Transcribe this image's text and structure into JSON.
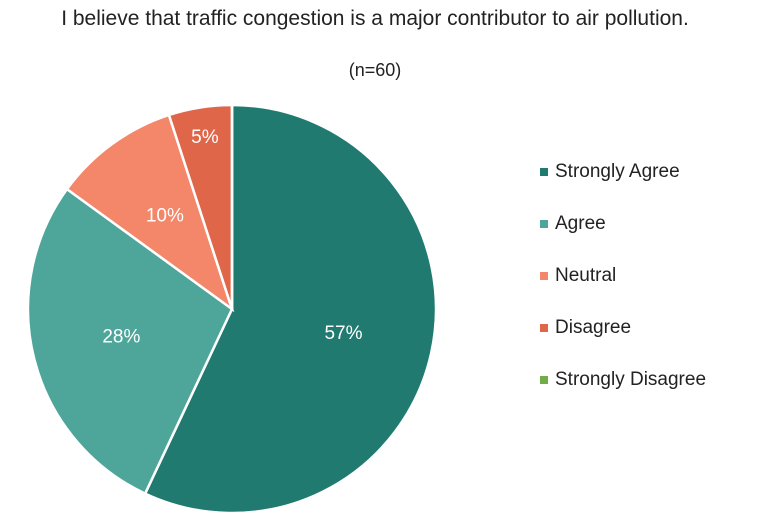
{
  "chart_data": {
    "type": "pie",
    "title": "I believe that traffic congestion is a major contributor to air pollution.",
    "subtitle": "(n=60)",
    "categories": [
      "Strongly Agree",
      "Agree",
      "Neutral",
      "Disagree",
      "Strongly Disagree"
    ],
    "values": [
      57,
      28,
      10,
      5,
      0
    ],
    "value_labels": [
      "57%",
      "28%",
      "10%",
      "5%",
      null
    ],
    "colors": [
      "#217a70",
      "#4ea59a",
      "#f4866a",
      "#e0664a",
      "#70ad47"
    ],
    "legend": "right"
  }
}
